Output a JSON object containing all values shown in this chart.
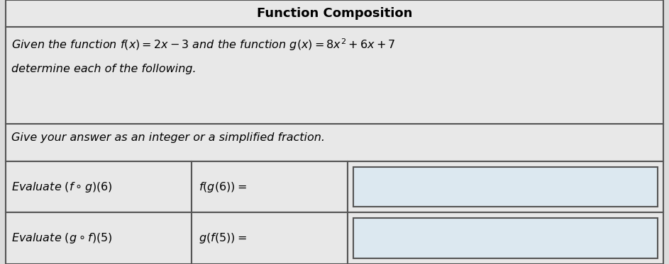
{
  "title": "Function Composition",
  "title_fontsize": 13,
  "title_fontweight": "bold",
  "line1": "Given the function $f(x) = 2x - 3$ and the function $g(x) = 8x^2 + 6x + 7$",
  "line2": "determine each of the following.",
  "line3": "Give your answer as an integer or a simplified fraction.",
  "row1_left": "Evaluate $(f \\circ g)(6)$",
  "row1_mid": "$f(g(6)) = $",
  "row2_left": "Evaluate $(g \\circ f)(5)$",
  "row2_mid": "$g(f(5)) = $",
  "bg_color": "#dcdcdc",
  "table_bg": "#e8e8e8",
  "cell_bg": "#e8e8e8",
  "input_bg": "#dce8f0",
  "border_color": "#555555",
  "text_color": "#000000",
  "font_size_title": 13,
  "font_size_body": 11.5,
  "font_size_row": 11.5
}
